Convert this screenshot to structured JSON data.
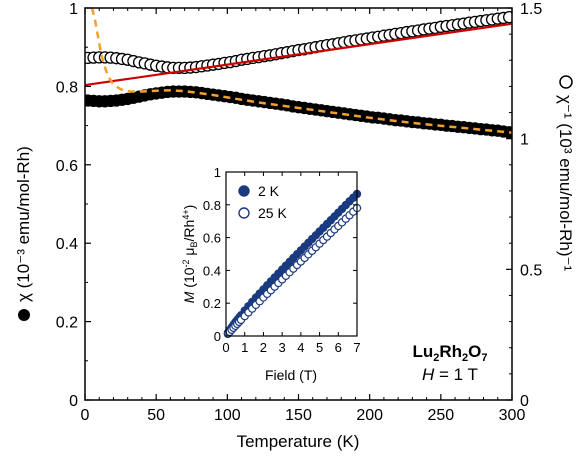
{
  "chart_data": [
    {
      "type": "scatter",
      "xlabel": "Temperature (K)",
      "ylabel_left": "χ (10⁻³ emu/mol-Rh)",
      "ylabel_right": "χ⁻¹ (10³ emu/mol-Rh)⁻¹",
      "xlim": [
        0,
        300
      ],
      "ylim_left": [
        0,
        1
      ],
      "ylim_right": [
        0,
        1.5
      ],
      "xticks": [
        "0",
        "50",
        "100",
        "150",
        "200",
        "250",
        "300"
      ],
      "yticks_left": [
        "0",
        "0.2",
        "0.4",
        "0.6",
        "0.8",
        "1"
      ],
      "yticks_right": [
        "0",
        "0.5",
        "1",
        "1.5"
      ],
      "annotation_compound": "Lu2Rh2O7",
      "annotation_field": "H = 1 T",
      "series": [
        {
          "marker": "filled-circle",
          "axis": "left",
          "color": "#000000",
          "x": [
            2,
            6,
            10,
            14,
            18,
            22,
            26,
            30,
            34,
            38,
            42,
            46,
            50,
            54,
            58,
            62,
            66,
            70,
            74,
            78,
            82,
            86,
            90,
            94,
            98,
            102,
            106,
            110,
            114,
            118,
            122,
            126,
            130,
            134,
            138,
            142,
            146,
            150,
            154,
            158,
            162,
            166,
            170,
            174,
            178,
            182,
            186,
            190,
            194,
            198,
            202,
            206,
            210,
            214,
            218,
            222,
            226,
            230,
            234,
            238,
            242,
            246,
            250,
            254,
            258,
            262,
            266,
            270,
            274,
            278,
            282,
            286,
            290,
            294,
            298
          ],
          "y": [
            0.764,
            0.763,
            0.762,
            0.762,
            0.763,
            0.764,
            0.766,
            0.768,
            0.771,
            0.774,
            0.777,
            0.78,
            0.782,
            0.784,
            0.786,
            0.787,
            0.787,
            0.787,
            0.786,
            0.785,
            0.783,
            0.781,
            0.779,
            0.777,
            0.775,
            0.773,
            0.771,
            0.768,
            0.766,
            0.764,
            0.762,
            0.76,
            0.758,
            0.756,
            0.754,
            0.752,
            0.749,
            0.747,
            0.745,
            0.743,
            0.741,
            0.739,
            0.737,
            0.735,
            0.733,
            0.731,
            0.729,
            0.727,
            0.725,
            0.723,
            0.721,
            0.72,
            0.718,
            0.716,
            0.714,
            0.713,
            0.711,
            0.709,
            0.708,
            0.706,
            0.705,
            0.703,
            0.702,
            0.7,
            0.699,
            0.697,
            0.696,
            0.694,
            0.693,
            0.691,
            0.69,
            0.688,
            0.687,
            0.685,
            0.683
          ]
        },
        {
          "marker": "open-circle",
          "axis": "right",
          "color": "#000000",
          "x": [
            2,
            6,
            10,
            14,
            18,
            22,
            26,
            30,
            34,
            38,
            42,
            46,
            50,
            54,
            58,
            62,
            66,
            70,
            74,
            78,
            82,
            86,
            90,
            94,
            98,
            102,
            106,
            110,
            114,
            118,
            122,
            126,
            130,
            134,
            138,
            142,
            146,
            150,
            154,
            158,
            162,
            166,
            170,
            174,
            178,
            182,
            186,
            190,
            194,
            198,
            202,
            206,
            210,
            214,
            218,
            222,
            226,
            230,
            234,
            238,
            242,
            246,
            250,
            254,
            258,
            262,
            266,
            270,
            274,
            278,
            282,
            286,
            290,
            294,
            298
          ],
          "y": [
            1.309,
            1.31,
            1.311,
            1.311,
            1.31,
            1.308,
            1.305,
            1.302,
            1.297,
            1.292,
            1.288,
            1.283,
            1.279,
            1.276,
            1.273,
            1.271,
            1.271,
            1.271,
            1.272,
            1.274,
            1.277,
            1.28,
            1.283,
            1.286,
            1.29,
            1.293,
            1.297,
            1.302,
            1.305,
            1.309,
            1.312,
            1.316,
            1.319,
            1.323,
            1.327,
            1.331,
            1.335,
            1.339,
            1.342,
            1.346,
            1.35,
            1.354,
            1.358,
            1.361,
            1.365,
            1.369,
            1.373,
            1.376,
            1.38,
            1.383,
            1.387,
            1.39,
            1.394,
            1.397,
            1.401,
            1.404,
            1.408,
            1.411,
            1.414,
            1.418,
            1.421,
            1.424,
            1.428,
            1.431,
            1.434,
            1.437,
            1.44,
            1.444,
            1.447,
            1.45,
            1.453,
            1.456,
            1.459,
            1.462,
            1.465
          ]
        },
        {
          "type": "line",
          "style": "solid",
          "axis": "right",
          "color": "#cc0000",
          "x": [
            0,
            300
          ],
          "y": [
            1.205,
            1.44
          ]
        },
        {
          "type": "line",
          "style": "dashed",
          "axis": "left",
          "color": "#f0a030",
          "x": [
            5,
            7,
            9,
            11,
            13,
            15,
            17,
            19,
            22,
            25,
            28,
            32,
            36,
            40,
            45,
            50,
            55,
            60,
            65,
            70,
            80,
            90,
            100,
            120,
            140,
            160,
            180,
            200,
            220,
            240,
            260,
            280,
            300
          ],
          "y": [
            1.0,
            0.97,
            0.93,
            0.89,
            0.86,
            0.838,
            0.822,
            0.81,
            0.8,
            0.793,
            0.789,
            0.787,
            0.787,
            0.787,
            0.788,
            0.789,
            0.79,
            0.79,
            0.789,
            0.788,
            0.783,
            0.778,
            0.772,
            0.76,
            0.75,
            0.74,
            0.73,
            0.72,
            0.711,
            0.703,
            0.696,
            0.689,
            0.682
          ]
        }
      ]
    },
    {
      "type": "scatter",
      "xlabel": "Field (T)",
      "ylabel": "M (10⁻² μB/Rh⁴⁺)",
      "xlim": [
        0,
        7
      ],
      "ylim": [
        0,
        1
      ],
      "xticks": [
        "0",
        "1",
        "2",
        "3",
        "4",
        "5",
        "6",
        "7"
      ],
      "yticks": [
        "0",
        "0.2",
        "0.4",
        "0.6",
        "0.8",
        "1"
      ],
      "legend": "top-left",
      "series": [
        {
          "name": "2 K",
          "marker": "filled-circle",
          "color": "#1a3a80",
          "x": [
            0.1,
            0.2,
            0.3,
            0.4,
            0.5,
            0.6,
            0.7,
            0.8,
            1.0,
            1.2,
            1.4,
            1.6,
            1.8,
            2.0,
            2.2,
            2.4,
            2.6,
            2.8,
            3.0,
            3.2,
            3.4,
            3.6,
            3.8,
            4.0,
            4.2,
            4.4,
            4.6,
            4.8,
            5.0,
            5.2,
            5.4,
            5.6,
            5.8,
            6.0,
            6.2,
            6.4,
            6.6,
            6.8,
            7.0
          ],
          "y": [
            0.02,
            0.037,
            0.053,
            0.069,
            0.084,
            0.098,
            0.112,
            0.126,
            0.155,
            0.182,
            0.208,
            0.234,
            0.259,
            0.284,
            0.309,
            0.333,
            0.357,
            0.381,
            0.405,
            0.429,
            0.452,
            0.476,
            0.499,
            0.522,
            0.545,
            0.568,
            0.591,
            0.614,
            0.637,
            0.66,
            0.683,
            0.706,
            0.729,
            0.752,
            0.775,
            0.798,
            0.821,
            0.843,
            0.866
          ]
        },
        {
          "name": "25 K",
          "marker": "open-circle",
          "color": "#1a3a80",
          "x": [
            0.1,
            0.2,
            0.3,
            0.4,
            0.5,
            0.6,
            0.7,
            0.8,
            1.0,
            1.2,
            1.4,
            1.6,
            1.8,
            2.0,
            2.2,
            2.4,
            2.6,
            2.8,
            3.0,
            3.2,
            3.4,
            3.6,
            3.8,
            4.0,
            4.2,
            4.4,
            4.6,
            4.8,
            5.0,
            5.2,
            5.4,
            5.6,
            5.8,
            6.0,
            6.2,
            6.4,
            6.6,
            6.8,
            7.0
          ],
          "y": [
            0.013,
            0.025,
            0.038,
            0.05,
            0.062,
            0.074,
            0.086,
            0.098,
            0.121,
            0.144,
            0.167,
            0.19,
            0.212,
            0.235,
            0.257,
            0.279,
            0.301,
            0.323,
            0.345,
            0.367,
            0.389,
            0.411,
            0.433,
            0.454,
            0.476,
            0.498,
            0.52,
            0.541,
            0.563,
            0.585,
            0.606,
            0.628,
            0.65,
            0.671,
            0.693,
            0.715,
            0.736,
            0.758,
            0.78
          ]
        }
      ]
    }
  ]
}
